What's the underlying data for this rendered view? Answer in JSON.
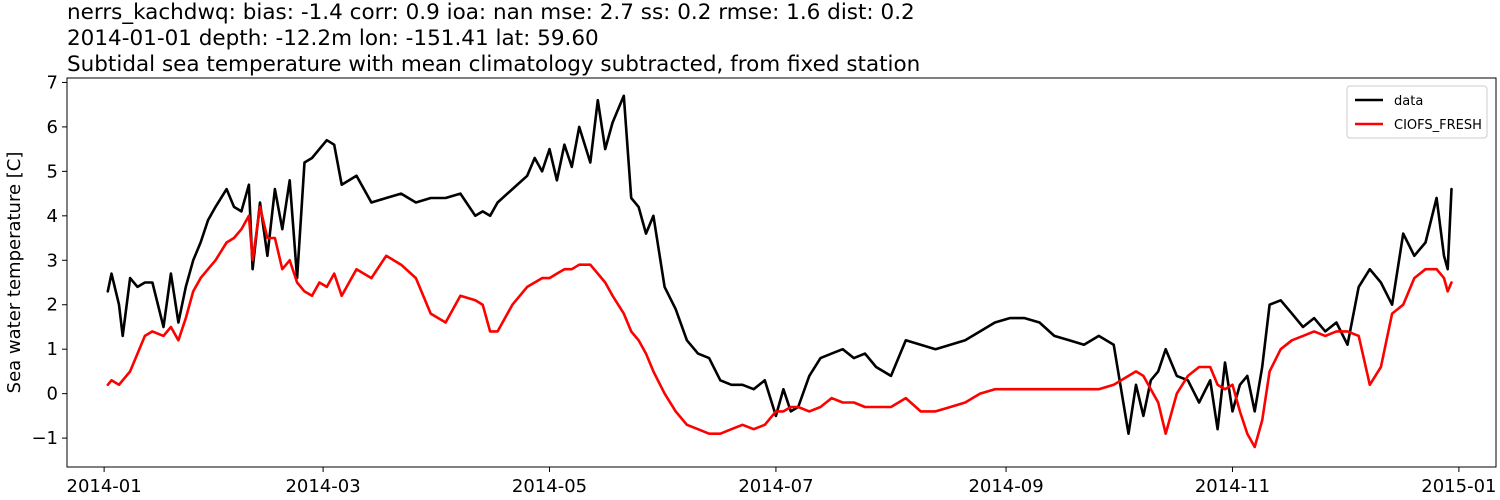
{
  "chart_data": {
    "type": "line",
    "title_lines": [
      "nerrs_kachdwq: bias: -1.4  corr: 0.9  ioa: nan  mse: 2.7  ss: 0.2  rmse: 1.6  dist: 0.2",
      "2014-01-01 depth: -12.2m lon: -151.41 lat: 59.60",
      "Subtidal sea temperature with mean climatology subtracted, from fixed station"
    ],
    "xlabel": "",
    "ylabel": "Sea water temperature [C]",
    "xlim": [
      "2013-12-22",
      "2015-01-11"
    ],
    "ylim": [
      -1.65,
      7.1
    ],
    "x_ticks": [
      "2014-01",
      "2014-03",
      "2014-05",
      "2014-07",
      "2014-09",
      "2014-11",
      "2015-01"
    ],
    "y_ticks": [
      -1,
      0,
      1,
      2,
      3,
      4,
      5,
      6,
      7
    ],
    "y_tick_labels": [
      "−1",
      "0",
      "1",
      "2",
      "3",
      "4",
      "5",
      "6",
      "7"
    ],
    "grid": false,
    "legend_position": "top-right",
    "series": [
      {
        "name": "data",
        "color": "#000000",
        "x": [
          "2014-01-02",
          "2014-01-03",
          "2014-01-05",
          "2014-01-06",
          "2014-01-08",
          "2014-01-10",
          "2014-01-12",
          "2014-01-14",
          "2014-01-17",
          "2014-01-19",
          "2014-01-21",
          "2014-01-23",
          "2014-01-25",
          "2014-01-27",
          "2014-01-29",
          "2014-01-31",
          "2014-02-03",
          "2014-02-05",
          "2014-02-07",
          "2014-02-09",
          "2014-02-10",
          "2014-02-12",
          "2014-02-14",
          "2014-02-16",
          "2014-02-18",
          "2014-02-20",
          "2014-02-22",
          "2014-02-24",
          "2014-02-26",
          "2014-02-28",
          "2014-03-02",
          "2014-03-04",
          "2014-03-06",
          "2014-03-10",
          "2014-03-14",
          "2014-03-18",
          "2014-03-22",
          "2014-03-26",
          "2014-03-30",
          "2014-04-03",
          "2014-04-07",
          "2014-04-11",
          "2014-04-13",
          "2014-04-15",
          "2014-04-17",
          "2014-04-21",
          "2014-04-25",
          "2014-04-27",
          "2014-04-29",
          "2014-05-01",
          "2014-05-03",
          "2014-05-05",
          "2014-05-07",
          "2014-05-09",
          "2014-05-12",
          "2014-05-14",
          "2014-05-16",
          "2014-05-18",
          "2014-05-21",
          "2014-05-23",
          "2014-05-25",
          "2014-05-27",
          "2014-05-29",
          "2014-06-01",
          "2014-06-04",
          "2014-06-07",
          "2014-06-10",
          "2014-06-13",
          "2014-06-16",
          "2014-06-19",
          "2014-06-22",
          "2014-06-25",
          "2014-06-28",
          "2014-07-01",
          "2014-07-03",
          "2014-07-05",
          "2014-07-07",
          "2014-07-10",
          "2014-07-13",
          "2014-07-16",
          "2014-07-19",
          "2014-07-22",
          "2014-07-25",
          "2014-07-28",
          "2014-08-01",
          "2014-08-05",
          "2014-08-09",
          "2014-08-13",
          "2014-08-17",
          "2014-08-21",
          "2014-08-25",
          "2014-08-29",
          "2014-09-02",
          "2014-09-06",
          "2014-09-10",
          "2014-09-14",
          "2014-09-18",
          "2014-09-22",
          "2014-09-26",
          "2014-09-30",
          "2014-10-04",
          "2014-10-06",
          "2014-10-08",
          "2014-10-10",
          "2014-10-12",
          "2014-10-14",
          "2014-10-17",
          "2014-10-20",
          "2014-10-23",
          "2014-10-26",
          "2014-10-28",
          "2014-10-30",
          "2014-11-01",
          "2014-11-03",
          "2014-11-05",
          "2014-11-07",
          "2014-11-09",
          "2014-11-11",
          "2014-11-14",
          "2014-11-17",
          "2014-11-20",
          "2014-11-23",
          "2014-11-26",
          "2014-11-29",
          "2014-12-02",
          "2014-12-05",
          "2014-12-08",
          "2014-12-11",
          "2014-12-14",
          "2014-12-17",
          "2014-12-20",
          "2014-12-23",
          "2014-12-26",
          "2014-12-28",
          "2014-12-29",
          "2014-12-30"
        ],
        "y": [
          2.3,
          2.7,
          2.0,
          1.3,
          2.6,
          2.4,
          2.5,
          2.5,
          1.5,
          2.7,
          1.6,
          2.4,
          3.0,
          3.4,
          3.9,
          4.2,
          4.6,
          4.2,
          4.1,
          4.7,
          2.8,
          4.3,
          3.1,
          4.6,
          3.7,
          4.8,
          2.6,
          5.2,
          5.3,
          5.5,
          5.7,
          5.6,
          4.7,
          4.9,
          4.3,
          4.4,
          4.5,
          4.3,
          4.4,
          4.4,
          4.5,
          4.0,
          4.1,
          4.0,
          4.3,
          4.6,
          4.9,
          5.3,
          5.0,
          5.5,
          4.8,
          5.6,
          5.1,
          6.0,
          5.2,
          6.6,
          5.5,
          6.1,
          6.7,
          4.4,
          4.2,
          3.6,
          4.0,
          2.4,
          1.9,
          1.2,
          0.9,
          0.8,
          0.3,
          0.2,
          0.2,
          0.1,
          0.3,
          -0.5,
          0.1,
          -0.4,
          -0.3,
          0.4,
          0.8,
          0.9,
          1.0,
          0.8,
          0.9,
          0.6,
          0.4,
          1.2,
          1.1,
          1.0,
          1.1,
          1.2,
          1.4,
          1.6,
          1.7,
          1.7,
          1.6,
          1.3,
          1.2,
          1.1,
          1.3,
          1.1,
          -0.9,
          0.2,
          -0.5,
          0.3,
          0.5,
          1.0,
          0.4,
          0.3,
          -0.2,
          0.3,
          -0.8,
          0.7,
          -0.4,
          0.2,
          0.4,
          -0.4,
          0.6,
          2.0,
          2.1,
          1.8,
          1.5,
          1.7,
          1.4,
          1.6,
          1.1,
          2.4,
          2.8,
          2.5,
          2.0,
          3.6,
          3.1,
          3.4,
          4.4,
          3.1,
          2.8,
          4.6
        ]
      },
      {
        "name": "CIOFS_FRESH",
        "color": "#ff0000",
        "x": [
          "2014-01-02",
          "2014-01-03",
          "2014-01-05",
          "2014-01-06",
          "2014-01-08",
          "2014-01-10",
          "2014-01-12",
          "2014-01-14",
          "2014-01-17",
          "2014-01-19",
          "2014-01-21",
          "2014-01-23",
          "2014-01-25",
          "2014-01-27",
          "2014-01-29",
          "2014-01-31",
          "2014-02-03",
          "2014-02-05",
          "2014-02-07",
          "2014-02-09",
          "2014-02-10",
          "2014-02-12",
          "2014-02-14",
          "2014-02-16",
          "2014-02-18",
          "2014-02-20",
          "2014-02-22",
          "2014-02-24",
          "2014-02-26",
          "2014-02-28",
          "2014-03-02",
          "2014-03-04",
          "2014-03-06",
          "2014-03-10",
          "2014-03-14",
          "2014-03-18",
          "2014-03-22",
          "2014-03-26",
          "2014-03-30",
          "2014-04-03",
          "2014-04-07",
          "2014-04-11",
          "2014-04-13",
          "2014-04-15",
          "2014-04-17",
          "2014-04-21",
          "2014-04-25",
          "2014-04-27",
          "2014-04-29",
          "2014-05-01",
          "2014-05-03",
          "2014-05-05",
          "2014-05-07",
          "2014-05-09",
          "2014-05-12",
          "2014-05-14",
          "2014-05-16",
          "2014-05-18",
          "2014-05-21",
          "2014-05-23",
          "2014-05-25",
          "2014-05-27",
          "2014-05-29",
          "2014-06-01",
          "2014-06-04",
          "2014-06-07",
          "2014-06-10",
          "2014-06-13",
          "2014-06-16",
          "2014-06-19",
          "2014-06-22",
          "2014-06-25",
          "2014-06-28",
          "2014-07-01",
          "2014-07-03",
          "2014-07-05",
          "2014-07-07",
          "2014-07-10",
          "2014-07-13",
          "2014-07-16",
          "2014-07-19",
          "2014-07-22",
          "2014-07-25",
          "2014-07-28",
          "2014-08-01",
          "2014-08-05",
          "2014-08-09",
          "2014-08-13",
          "2014-08-17",
          "2014-08-21",
          "2014-08-25",
          "2014-08-29",
          "2014-09-02",
          "2014-09-06",
          "2014-09-10",
          "2014-09-14",
          "2014-09-18",
          "2014-09-22",
          "2014-09-26",
          "2014-09-30",
          "2014-10-04",
          "2014-10-06",
          "2014-10-08",
          "2014-10-10",
          "2014-10-12",
          "2014-10-14",
          "2014-10-17",
          "2014-10-20",
          "2014-10-23",
          "2014-10-26",
          "2014-10-28",
          "2014-10-30",
          "2014-11-01",
          "2014-11-03",
          "2014-11-05",
          "2014-11-07",
          "2014-11-09",
          "2014-11-11",
          "2014-11-14",
          "2014-11-17",
          "2014-11-20",
          "2014-11-23",
          "2014-11-26",
          "2014-11-29",
          "2014-12-02",
          "2014-12-05",
          "2014-12-08",
          "2014-12-11",
          "2014-12-14",
          "2014-12-17",
          "2014-12-20",
          "2014-12-23",
          "2014-12-26",
          "2014-12-28",
          "2014-12-29",
          "2014-12-30"
        ],
        "y": [
          0.2,
          0.3,
          0.2,
          0.3,
          0.5,
          0.9,
          1.3,
          1.4,
          1.3,
          1.5,
          1.2,
          1.7,
          2.3,
          2.6,
          2.8,
          3.0,
          3.4,
          3.5,
          3.7,
          4.0,
          3.0,
          4.2,
          3.5,
          3.5,
          2.8,
          3.0,
          2.5,
          2.3,
          2.2,
          2.5,
          2.4,
          2.7,
          2.2,
          2.8,
          2.6,
          3.1,
          2.9,
          2.6,
          1.8,
          1.6,
          2.2,
          2.1,
          2.0,
          1.4,
          1.4,
          2.0,
          2.4,
          2.5,
          2.6,
          2.6,
          2.7,
          2.8,
          2.8,
          2.9,
          2.9,
          2.7,
          2.5,
          2.2,
          1.8,
          1.4,
          1.2,
          0.9,
          0.5,
          0.0,
          -0.4,
          -0.7,
          -0.8,
          -0.9,
          -0.9,
          -0.8,
          -0.7,
          -0.8,
          -0.7,
          -0.4,
          -0.4,
          -0.3,
          -0.3,
          -0.4,
          -0.3,
          -0.1,
          -0.2,
          -0.2,
          -0.3,
          -0.3,
          -0.3,
          -0.1,
          -0.4,
          -0.4,
          -0.3,
          -0.2,
          0.0,
          0.1,
          0.1,
          0.1,
          0.1,
          0.1,
          0.1,
          0.1,
          0.1,
          0.2,
          0.4,
          0.5,
          0.4,
          0.1,
          -0.2,
          -0.9,
          0.0,
          0.4,
          0.6,
          0.6,
          0.2,
          0.1,
          0.2,
          -0.4,
          -0.9,
          -1.2,
          -0.6,
          0.5,
          1.0,
          1.2,
          1.3,
          1.4,
          1.3,
          1.4,
          1.4,
          1.3,
          0.2,
          0.6,
          1.8,
          2.0,
          2.6,
          2.8,
          2.8,
          2.6,
          2.3,
          2.5
        ]
      }
    ]
  }
}
